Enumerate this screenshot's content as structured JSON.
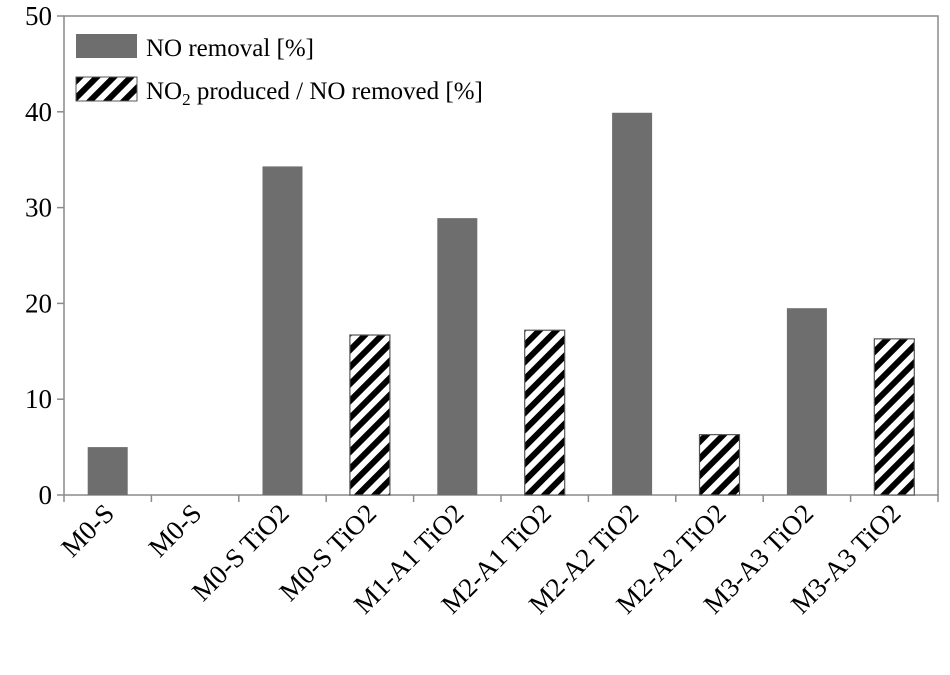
{
  "chart_data": {
    "type": "bar",
    "categories": [
      "M0-S",
      "M0-S",
      "M0-S TiO2",
      "M0-S TiO2",
      "M1-A1 TiO2",
      "M2-A1 TiO2",
      "M2-A2 TiO2",
      "M2-A2 TiO2",
      "M3-A3 TiO2",
      "M3-A3 TiO2"
    ],
    "series": [
      {
        "name": "NO removal [%]",
        "legend_main": "NO removal [%]",
        "style": "solid",
        "color": "#6e6e6e",
        "values": [
          5.0,
          null,
          34.3,
          null,
          28.9,
          null,
          39.9,
          null,
          19.5,
          null
        ]
      },
      {
        "name": "NO2 produced / NO removed [%]",
        "legend_main": "NO",
        "legend_sub": "2",
        "legend_rest": " produced / NO removed [%]",
        "style": "hatched",
        "color": "#000000",
        "values": [
          null,
          null,
          null,
          16.7,
          null,
          17.2,
          null,
          6.3,
          null,
          16.3
        ]
      }
    ],
    "ylim": [
      0,
      50
    ],
    "yticks": [
      0,
      10,
      20,
      30,
      40,
      50
    ],
    "grid": false,
    "legend_position": "top-left",
    "xlabel": "",
    "ylabel": "",
    "title": ""
  }
}
